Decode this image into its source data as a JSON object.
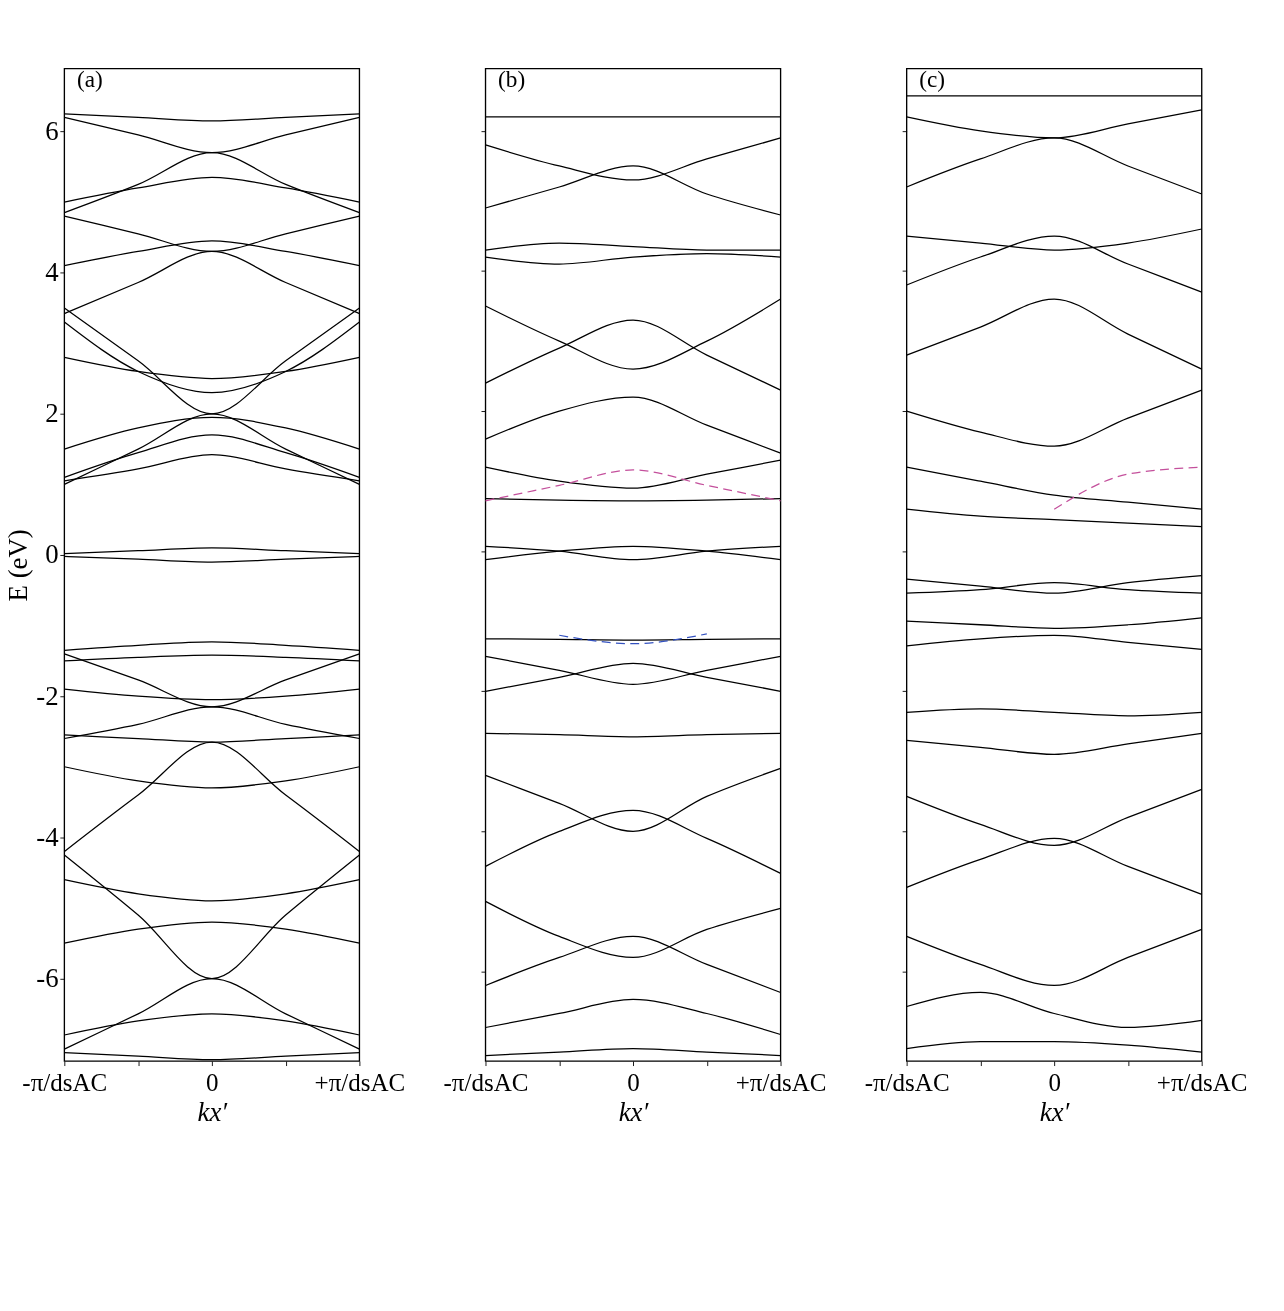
{
  "chart_data": [
    {
      "type": "line",
      "ylabel": "E (eV)",
      "xlabel": "kx′",
      "annotations": [
        "(a)"
      ],
      "ylim": [
        -7.17,
        6.89
      ],
      "yticks": [
        -6,
        -4,
        -2,
        0,
        2,
        4,
        6
      ],
      "categories": [
        "-π/dsAC",
        null,
        "0",
        null,
        "+π/dsAC"
      ],
      "series": [
        {
          "color": "#000000",
          "values": [
            1.05,
            1.22,
            1.42,
            1.22,
            1.05
          ]
        },
        {
          "color": "#000000",
          "values": [
            1.1,
            1.45,
            1.7,
            1.45,
            1.1
          ]
        },
        {
          "color": "#000000",
          "values": [
            1.0,
            1.5,
            2.0,
            1.5,
            1.0
          ]
        },
        {
          "color": "#000000",
          "values": [
            3.5,
            2.75,
            2.0,
            2.75,
            3.5
          ]
        },
        {
          "color": "#000000",
          "values": [
            3.3,
            2.6,
            2.3,
            2.6,
            3.3
          ]
        },
        {
          "color": "#000000",
          "values": [
            3.42,
            3.86,
            4.3,
            3.86,
            3.42
          ]
        },
        {
          "color": "#000000",
          "values": [
            4.8,
            4.55,
            4.3,
            4.55,
            4.8
          ]
        },
        {
          "color": "#000000",
          "values": [
            4.85,
            5.25,
            5.7,
            5.25,
            4.85
          ]
        },
        {
          "color": "#000000",
          "values": [
            6.2,
            5.95,
            5.7,
            5.95,
            6.2
          ]
        },
        {
          "color": "#000000",
          "values": [
            6.25,
            6.2,
            6.15,
            6.2,
            6.25
          ]
        },
        {
          "color": "#000000",
          "values": [
            4.1,
            4.3,
            4.45,
            4.3,
            4.1
          ]
        },
        {
          "color": "#000000",
          "values": [
            5.0,
            5.2,
            5.35,
            5.2,
            5.0
          ]
        },
        {
          "color": "#000000",
          "values": [
            2.8,
            2.6,
            2.5,
            2.6,
            2.8
          ]
        },
        {
          "color": "#000000",
          "values": [
            1.5,
            1.8,
            1.95,
            1.8,
            1.5
          ]
        },
        {
          "color": "#000000",
          "values": [
            0.02,
            0.06,
            0.1,
            0.06,
            0.02
          ]
        },
        {
          "color": "#000000",
          "values": [
            -0.02,
            -0.06,
            -0.1,
            -0.06,
            -0.02
          ]
        },
        {
          "color": "#000000",
          "values": [
            -1.35,
            -1.28,
            -1.23,
            -1.28,
            -1.35
          ]
        },
        {
          "color": "#000000",
          "values": [
            -1.5,
            -1.45,
            -1.42,
            -1.45,
            -1.5
          ]
        },
        {
          "color": "#000000",
          "values": [
            -1.4,
            -1.77,
            -2.15,
            -1.77,
            -1.4
          ]
        },
        {
          "color": "#000000",
          "values": [
            -2.6,
            -2.4,
            -2.15,
            -2.4,
            -2.6
          ]
        },
        {
          "color": "#000000",
          "values": [
            -2.55,
            -2.6,
            -2.65,
            -2.6,
            -2.55
          ]
        },
        {
          "color": "#000000",
          "values": [
            -4.2,
            -3.4,
            -2.65,
            -3.4,
            -4.2
          ]
        },
        {
          "color": "#000000",
          "values": [
            -4.25,
            -5.1,
            -6.0,
            -5.1,
            -4.25
          ]
        },
        {
          "color": "#000000",
          "values": [
            -7.0,
            -6.5,
            -6.0,
            -6.5,
            -7.0
          ]
        },
        {
          "color": "#000000",
          "values": [
            -7.05,
            -7.1,
            -7.15,
            -7.1,
            -7.05
          ]
        },
        {
          "color": "#000000",
          "values": [
            -6.8,
            -6.6,
            -6.5,
            -6.6,
            -6.8
          ]
        },
        {
          "color": "#000000",
          "values": [
            -3.0,
            -3.2,
            -3.3,
            -3.2,
            -3.0
          ]
        },
        {
          "color": "#000000",
          "values": [
            -4.6,
            -4.8,
            -4.9,
            -4.8,
            -4.6
          ]
        },
        {
          "color": "#000000",
          "values": [
            -5.5,
            -5.3,
            -5.2,
            -5.3,
            -5.5
          ]
        },
        {
          "color": "#000000",
          "values": [
            -1.9,
            -2.0,
            -2.05,
            -2.0,
            -1.9
          ]
        }
      ]
    },
    {
      "type": "line",
      "xlabel": "kx′",
      "annotations": [
        "(b)"
      ],
      "tick_labels": "x",
      "ylim": [
        -7.28,
        6.89
      ],
      "yticks": [
        -6,
        -4,
        -2,
        0,
        2,
        4,
        6
      ],
      "categories": [
        "-π/dsAC",
        null,
        "0",
        null,
        "+π/dsAC"
      ],
      "series": [
        {
          "color": "#000000",
          "values": [
            6.2,
            6.2,
            6.2,
            6.2,
            6.2
          ]
        },
        {
          "color": "#000000",
          "values": [
            5.8,
            5.5,
            5.3,
            5.6,
            5.9
          ]
        },
        {
          "color": "#000000",
          "values": [
            4.9,
            5.2,
            5.5,
            5.1,
            4.8
          ]
        },
        {
          "color": "#000000",
          "values": [
            4.3,
            4.4,
            4.35,
            4.3,
            4.3
          ]
        },
        {
          "color": "#000000",
          "values": [
            4.2,
            4.1,
            4.2,
            4.25,
            4.2
          ]
        },
        {
          "color": "#000000",
          "values": [
            3.5,
            3.0,
            2.6,
            3.0,
            3.6
          ]
        },
        {
          "color": "#000000",
          "values": [
            2.4,
            2.9,
            3.3,
            2.8,
            2.3
          ]
        },
        {
          "color": "#000000",
          "values": [
            1.6,
            2.0,
            2.2,
            1.8,
            1.4
          ]
        },
        {
          "color": "#000000",
          "values": [
            1.2,
            1.0,
            0.9,
            1.1,
            1.3
          ]
        },
        {
          "color": "#000000",
          "values": [
            0.75,
            0.73,
            0.72,
            0.73,
            0.75
          ]
        },
        {
          "color": "#000000",
          "values": [
            -0.12,
            0.0,
            0.07,
            0.0,
            -0.12
          ]
        },
        {
          "color": "#000000",
          "values": [
            0.07,
            0.0,
            -0.12,
            0.0,
            0.07
          ]
        },
        {
          "color": "#000000",
          "values": [
            -1.25,
            -1.26,
            -1.27,
            -1.26,
            -1.25
          ]
        },
        {
          "color": "#000000",
          "values": [
            -1.5,
            -1.7,
            -1.9,
            -1.7,
            -1.5
          ]
        },
        {
          "color": "#000000",
          "values": [
            -2.0,
            -1.8,
            -1.6,
            -1.8,
            -2.0
          ]
        },
        {
          "color": "#000000",
          "values": [
            -2.6,
            -2.62,
            -2.65,
            -2.62,
            -2.6
          ]
        },
        {
          "color": "#000000",
          "values": [
            -3.2,
            -3.6,
            -4.0,
            -3.5,
            -3.1
          ]
        },
        {
          "color": "#000000",
          "values": [
            -4.5,
            -4.0,
            -3.7,
            -4.1,
            -4.6
          ]
        },
        {
          "color": "#000000",
          "values": [
            -5.0,
            -5.5,
            -5.8,
            -5.4,
            -5.1
          ]
        },
        {
          "color": "#000000",
          "values": [
            -6.2,
            -5.8,
            -5.5,
            -5.9,
            -6.3
          ]
        },
        {
          "color": "#000000",
          "values": [
            -6.8,
            -6.6,
            -6.4,
            -6.6,
            -6.9
          ]
        },
        {
          "color": "#000000",
          "values": [
            -7.2,
            -7.15,
            -7.1,
            -7.15,
            -7.2
          ]
        },
        {
          "color": "#c4509c",
          "line_style": "dashed",
          "values": [
            0.72,
            0.94,
            1.16,
            0.94,
            0.72
          ]
        },
        {
          "color": "#3452c0",
          "line_style": "dashed",
          "values": [
            null,
            -1.2,
            -1.32,
            -1.18,
            null
          ]
        }
      ]
    },
    {
      "type": "line",
      "xlabel": "kx′",
      "annotations": [
        "(c)"
      ],
      "tick_labels": "x",
      "ylim": [
        -7.28,
        6.89
      ],
      "yticks": [
        -6,
        -4,
        -2,
        0,
        2,
        4,
        6
      ],
      "categories": [
        "-π/dsAC",
        null,
        "0",
        null,
        "+π/dsAC"
      ],
      "series": [
        {
          "color": "#000000",
          "values": [
            6.5,
            6.5,
            6.5,
            6.5,
            6.5
          ]
        },
        {
          "color": "#000000",
          "values": [
            6.2,
            6.0,
            5.9,
            6.1,
            6.3
          ]
        },
        {
          "color": "#000000",
          "values": [
            5.2,
            5.6,
            5.9,
            5.5,
            5.1
          ]
        },
        {
          "color": "#000000",
          "values": [
            4.5,
            4.4,
            4.3,
            4.4,
            4.6
          ]
        },
        {
          "color": "#000000",
          "values": [
            3.8,
            4.2,
            4.5,
            4.1,
            3.7
          ]
        },
        {
          "color": "#000000",
          "values": [
            2.8,
            3.2,
            3.6,
            3.1,
            2.6
          ]
        },
        {
          "color": "#000000",
          "values": [
            2.0,
            1.7,
            1.5,
            1.9,
            2.3
          ]
        },
        {
          "color": "#000000",
          "values": [
            1.2,
            1.0,
            0.8,
            0.7,
            0.6
          ]
        },
        {
          "color": "#000000",
          "values": [
            0.6,
            0.5,
            0.45,
            0.4,
            0.35
          ]
        },
        {
          "color": "#000000",
          "values": [
            -0.4,
            -0.5,
            -0.6,
            -0.45,
            -0.35
          ]
        },
        {
          "color": "#000000",
          "values": [
            -0.6,
            -0.55,
            -0.45,
            -0.55,
            -0.6
          ]
        },
        {
          "color": "#000000",
          "values": [
            -1.0,
            -1.05,
            -1.1,
            -1.05,
            -0.95
          ]
        },
        {
          "color": "#000000",
          "values": [
            -1.35,
            -1.25,
            -1.2,
            -1.3,
            -1.4
          ]
        },
        {
          "color": "#000000",
          "values": [
            -2.3,
            -2.25,
            -2.3,
            -2.35,
            -2.3
          ]
        },
        {
          "color": "#000000",
          "values": [
            -2.7,
            -2.8,
            -2.9,
            -2.75,
            -2.6
          ]
        },
        {
          "color": "#000000",
          "values": [
            -3.5,
            -3.9,
            -4.2,
            -3.8,
            -3.4
          ]
        },
        {
          "color": "#000000",
          "values": [
            -4.8,
            -4.4,
            -4.1,
            -4.5,
            -4.9
          ]
        },
        {
          "color": "#000000",
          "values": [
            -5.5,
            -5.9,
            -6.2,
            -5.8,
            -5.4
          ]
        },
        {
          "color": "#000000",
          "values": [
            -6.5,
            -6.3,
            -6.6,
            -6.8,
            -6.7
          ]
        },
        {
          "color": "#000000",
          "values": [
            -7.1,
            -7.0,
            -7.0,
            -7.05,
            -7.15
          ]
        },
        {
          "color": "#c4509c",
          "line_style": "dashed",
          "values": [
            null,
            null,
            0.6,
            1.1,
            1.2
          ]
        }
      ]
    }
  ]
}
